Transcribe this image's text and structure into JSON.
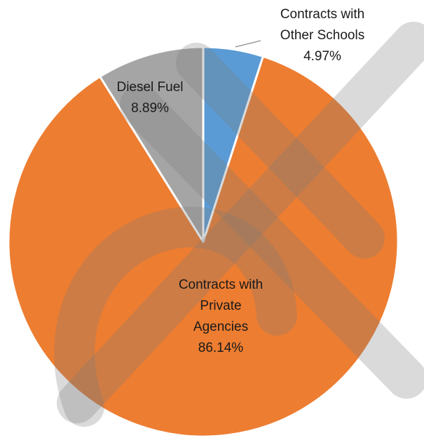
{
  "chart_data": {
    "type": "pie",
    "title": "",
    "slices": [
      {
        "label_lines": [
          "Contracts with",
          "Other Schools"
        ],
        "value": 4.97,
        "value_label": "4.97%",
        "color": "#5b9bd5"
      },
      {
        "label_lines": [
          "Contracts with",
          "Private",
          "Agencies"
        ],
        "value": 86.14,
        "value_label": "86.14%",
        "color": "#ed7d31"
      },
      {
        "label_lines": [
          "Diesel Fuel"
        ],
        "value": 8.89,
        "value_label": "8.89%",
        "color": "#a5a5a5"
      }
    ],
    "start_angle": "12 o'clock",
    "direction": "clockwise",
    "slice_border_color": "#ffffff",
    "legend": "none"
  }
}
